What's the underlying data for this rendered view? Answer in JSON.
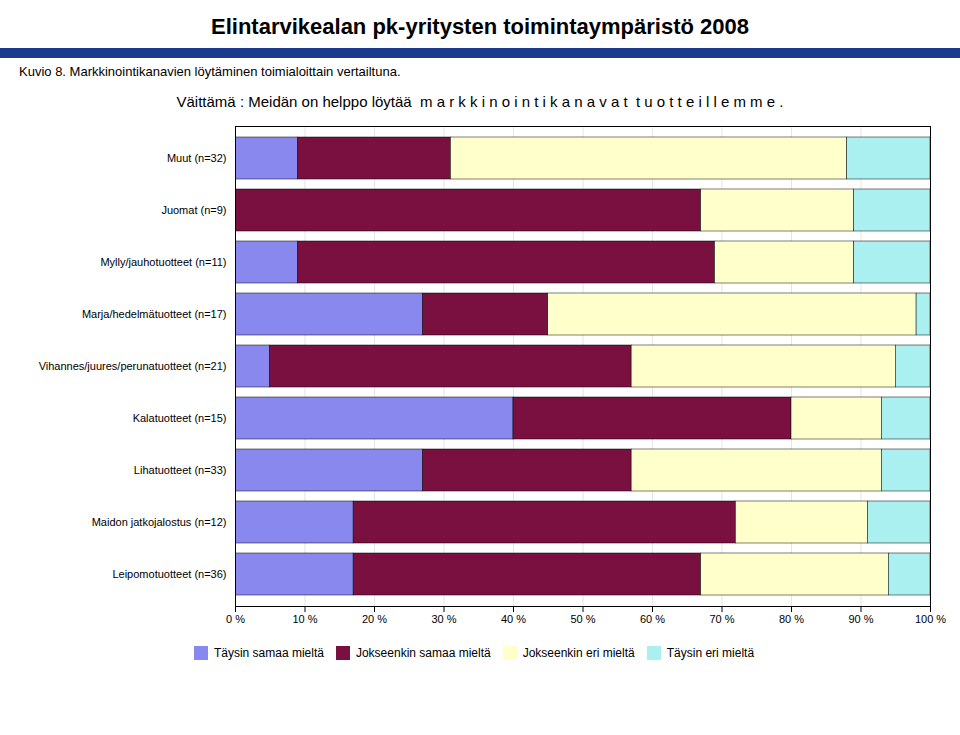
{
  "chart_data": {
    "type": "bar",
    "orientation": "horizontal",
    "stacked": true,
    "title": "Elintarvikealan pk-yritysten toimintaympäristö 2008",
    "subtitle": "Kuvio 8. Markkinointikanavien löytäminen toimialoittain vertailtuna.",
    "annotations": [
      "Väittämä : Meidän on helppo löytää  m a r k k i n o i n t i k a n a v a t  t u o t t e i l l e m m e ."
    ],
    "categories": [
      "Muut (n=32)",
      "Juomat (n=9)",
      "Mylly/jauhotuotteet (n=11)",
      "Marja/hedelmätuotteet (n=17)",
      "Vihannes/juures/perunatuotteet (n=21)",
      "Kalatuotteet (n=15)",
      "Lihatuotteet (n=33)",
      "Maidon jatkojalostus (n=12)",
      "Leipomotuotteet (n=36)"
    ],
    "series": [
      {
        "name": "Täysin samaa mieltä",
        "color": "#8888ee",
        "values": [
          9,
          0,
          9,
          27,
          5,
          40,
          27,
          17,
          17
        ]
      },
      {
        "name": "Jokseenkin samaa mieltä",
        "color": "#7a1040",
        "values": [
          22,
          67,
          60,
          18,
          52,
          40,
          30,
          55,
          50
        ]
      },
      {
        "name": "Jokseenkin eri mieltä",
        "color": "#ffffcc",
        "values": [
          57,
          22,
          20,
          53,
          38,
          13,
          36,
          19,
          27
        ]
      },
      {
        "name": "Täysin eri mieltä",
        "color": "#aaf0f0",
        "values": [
          12,
          11,
          11,
          2,
          5,
          7,
          7,
          9,
          6
        ]
      }
    ],
    "xlim": [
      0,
      100
    ],
    "xticks": [
      {
        "value": 0,
        "label": "0 %"
      },
      {
        "value": 10,
        "label": "10 %"
      },
      {
        "value": 20,
        "label": "20 %"
      },
      {
        "value": 30,
        "label": "30 %"
      },
      {
        "value": 40,
        "label": "40 %"
      },
      {
        "value": 50,
        "label": "50 %"
      },
      {
        "value": 60,
        "label": "60 %"
      },
      {
        "value": 70,
        "label": "70 %"
      },
      {
        "value": 80,
        "label": "80 %"
      },
      {
        "value": 90,
        "label": "90 %"
      },
      {
        "value": 100,
        "label": "100 %"
      }
    ],
    "grid": true,
    "legend": "bottom"
  }
}
